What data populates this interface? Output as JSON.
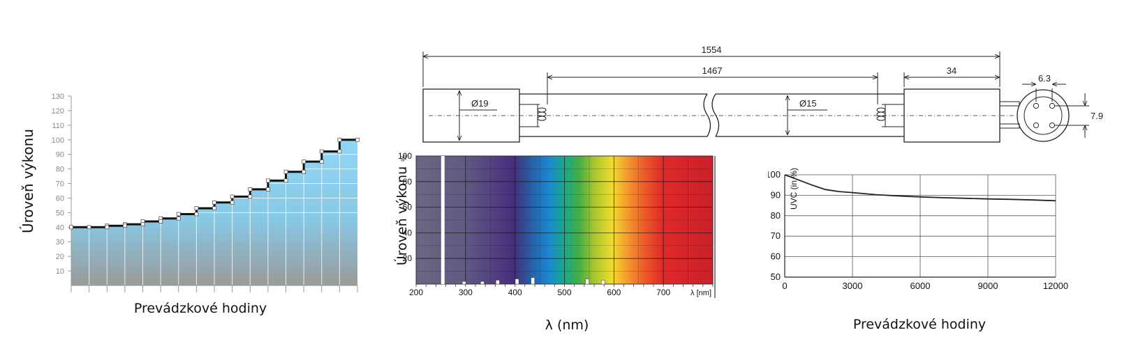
{
  "chart_data": [
    {
      "type": "line",
      "ylabel": "Úroveň výkonu",
      "xlabel": "Prevádzkové hodiny",
      "ylim": [
        0,
        130
      ],
      "yticks": [
        "10",
        "20",
        "30",
        "40",
        "50",
        "60",
        "70",
        "80",
        "90",
        "100",
        "110",
        "120",
        "130"
      ],
      "grid": true,
      "x": [
        0,
        1,
        2,
        3,
        4,
        5,
        6,
        7,
        8,
        9,
        10,
        11,
        12,
        13,
        14,
        15,
        16
      ],
      "values": [
        40,
        40,
        41,
        42,
        44,
        46,
        49,
        53,
        57,
        61,
        66,
        72,
        78,
        85,
        92,
        100,
        100
      ],
      "fill_colors": [
        "#8fd6f5",
        "#9a9a9a"
      ]
    },
    {
      "type": "bar",
      "ylabel": "Úroveň výkonu",
      "y_unit": "%",
      "xlabel": "λ (nm)",
      "x_unit": "λ [nm]",
      "xlim": [
        200,
        800
      ],
      "ylim": [
        0,
        100
      ],
      "xticks": [
        "200",
        "300",
        "400",
        "500",
        "600",
        "700"
      ],
      "yticks": [
        "20",
        "40",
        "60",
        "80",
        "100"
      ],
      "grid": true,
      "x": [
        254,
        297,
        334,
        365,
        404,
        436,
        546,
        578
      ],
      "values": [
        100,
        2,
        2,
        3,
        4,
        5,
        4,
        3
      ]
    },
    {
      "type": "line",
      "ylabel": "UVC (in %)",
      "xlabel": "Prevádzkové hodiny",
      "xlim": [
        0,
        12000
      ],
      "ylim": [
        50,
        100
      ],
      "xticks": [
        "0",
        "3000",
        "6000",
        "9000",
        "12000"
      ],
      "yticks": [
        "50",
        "60",
        "70",
        "80",
        "90",
        "100"
      ],
      "grid": true,
      "x": [
        0,
        600,
        1200,
        1800,
        2400,
        3000,
        4000,
        5000,
        6000,
        7000,
        8000,
        9000,
        10000,
        11000,
        12000
      ],
      "values": [
        100,
        97.5,
        95,
        92.8,
        91.8,
        91.3,
        90.3,
        89.7,
        89.2,
        88.8,
        88.5,
        88.2,
        88,
        87.7,
        87.3
      ]
    }
  ],
  "drawing": {
    "dim_overall": "1554",
    "dim_inner": "1467",
    "dim_cap": "34",
    "dim_tube_dia": "Ø19",
    "dim_tube_dia2": "Ø15",
    "dim_pin_spacing": "6.3",
    "dim_pin_offset": "7.9"
  }
}
